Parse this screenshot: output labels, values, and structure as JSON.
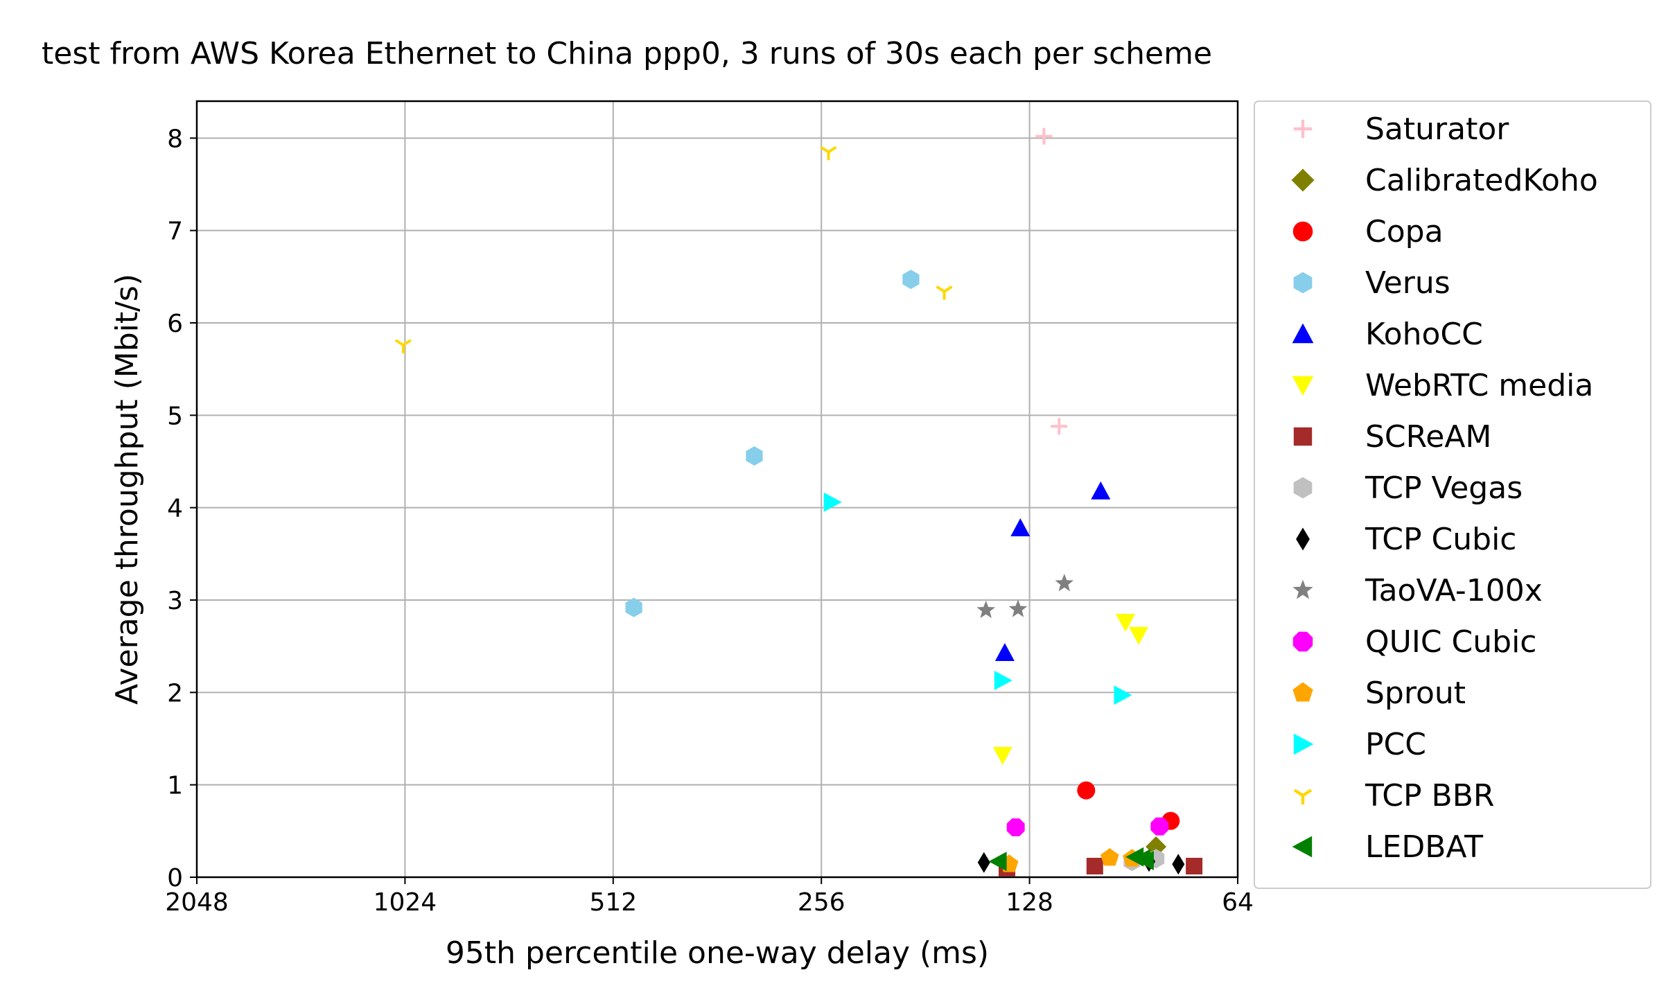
{
  "chart_data": {
    "type": "scatter",
    "title": "test from AWS Korea Ethernet to China ppp0, 3 runs of 30s each per scheme",
    "xlabel": "95th percentile one-way delay (ms)",
    "ylabel": "Average throughput (Mbit/s)",
    "x_scale": "log2",
    "x_inverted": true,
    "xlim": [
      2048,
      64
    ],
    "ylim": [
      0,
      8.4
    ],
    "xticks": [
      2048,
      1024,
      512,
      256,
      128,
      64
    ],
    "xtick_labels": [
      "2048",
      "1024",
      "512",
      "256",
      "128",
      "64"
    ],
    "yticks": [
      0,
      1,
      2,
      3,
      4,
      5,
      6,
      7,
      8
    ],
    "ytick_labels": [
      "0",
      "1",
      "2",
      "3",
      "4",
      "5",
      "6",
      "7",
      "8"
    ],
    "grid": true,
    "legend_position": "outside-right",
    "series": [
      {
        "name": "Saturator",
        "color": "#ffc0cb",
        "marker": "plus",
        "points": [
          [
            122,
            8.02
          ],
          [
            116,
            4.88
          ]
        ]
      },
      {
        "name": "CalibratedKoho",
        "color": "#808000",
        "marker": "diamond",
        "points": [
          [
            84,
            0.33
          ]
        ]
      },
      {
        "name": "Copa",
        "color": "#ff0000",
        "marker": "circle",
        "points": [
          [
            106,
            0.94
          ],
          [
            80,
            0.61
          ]
        ]
      },
      {
        "name": "Verus",
        "color": "#87ceeb",
        "marker": "hexagon",
        "points": [
          [
            190,
            6.47
          ],
          [
            320,
            4.56
          ],
          [
            478,
            2.92
          ]
        ]
      },
      {
        "name": "KohoCC",
        "color": "#0000ff",
        "marker": "triangle-up",
        "points": [
          [
            101,
            4.18
          ],
          [
            132,
            3.78
          ],
          [
            139,
            2.43
          ]
        ]
      },
      {
        "name": "WebRTC media",
        "color": "#ffff00",
        "marker": "triangle-down",
        "points": [
          [
            93,
            2.76
          ],
          [
            89,
            2.62
          ],
          [
            140,
            1.32
          ]
        ]
      },
      {
        "name": "SCReAM",
        "color": "#a52a2a",
        "marker": "square",
        "points": [
          [
            103,
            0.12
          ],
          [
            138,
            0.1
          ],
          [
            74,
            0.12
          ]
        ]
      },
      {
        "name": "TCP Vegas",
        "color": "#c0c0c0",
        "marker": "hexagon",
        "points": [
          [
            84,
            0.2
          ],
          [
            91,
            0.17
          ]
        ]
      },
      {
        "name": "TCP Cubic",
        "color": "#000000",
        "marker": "thin-diamond",
        "points": [
          [
            149,
            0.16
          ],
          [
            86,
            0.17
          ],
          [
            78,
            0.14
          ]
        ]
      },
      {
        "name": "TaoVA-100x",
        "color": "#808080",
        "marker": "star",
        "points": [
          [
            114,
            3.18
          ],
          [
            148,
            2.89
          ],
          [
            133,
            2.9
          ]
        ]
      },
      {
        "name": "QUIC Cubic",
        "color": "#ff00ff",
        "marker": "octagon",
        "points": [
          [
            134,
            0.54
          ],
          [
            83,
            0.55
          ]
        ]
      },
      {
        "name": "Sprout",
        "color": "#ffa500",
        "marker": "pentagon",
        "points": [
          [
            98,
            0.21
          ],
          [
            137,
            0.14
          ],
          [
            91,
            0.2
          ]
        ]
      },
      {
        "name": "PCC",
        "color": "#00ffff",
        "marker": "triangle-right",
        "points": [
          [
            247,
            4.06
          ],
          [
            140,
            2.13
          ],
          [
            94,
            1.97
          ]
        ]
      },
      {
        "name": "TCP BBR",
        "color": "#ffd700",
        "marker": "tri-down",
        "points": [
          [
            250,
            7.85
          ],
          [
            1030,
            5.76
          ],
          [
            170,
            6.34
          ]
        ]
      },
      {
        "name": "LEDBAT",
        "color": "#008000",
        "marker": "triangle-left",
        "points": [
          [
            142,
            0.17
          ],
          [
            90,
            0.22
          ],
          [
            88,
            0.2
          ],
          [
            87,
            0.18
          ]
        ]
      }
    ]
  }
}
